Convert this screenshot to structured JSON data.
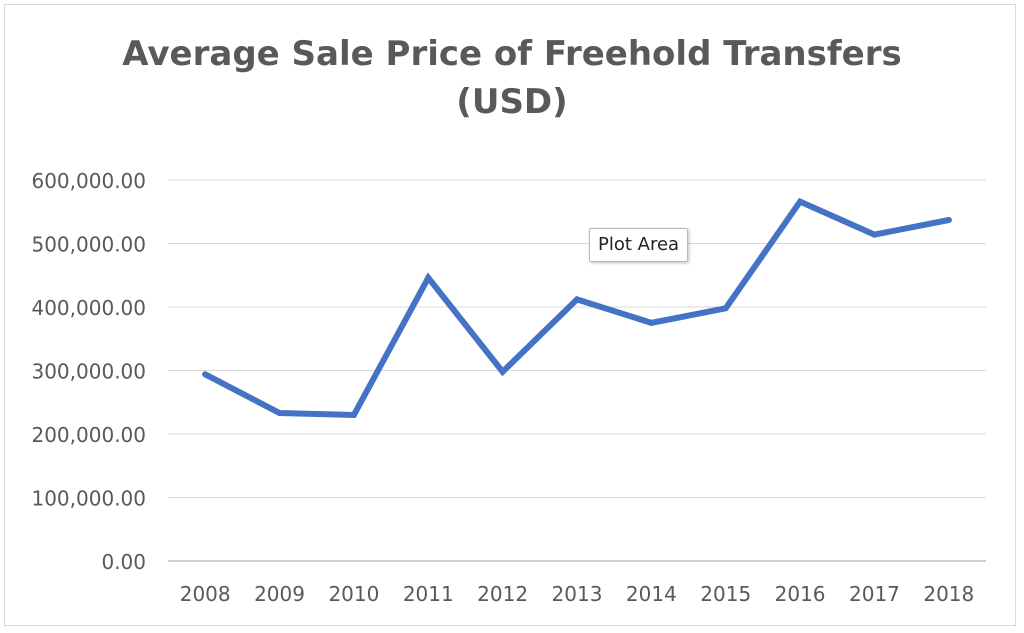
{
  "chart_data": {
    "type": "line",
    "title": "Average Sale Price of Freehold Transfers (USD)",
    "title_lines": [
      "Average Sale Price of Freehold Transfers",
      "(USD)"
    ],
    "categories": [
      "2008",
      "2009",
      "2010",
      "2011",
      "2012",
      "2013",
      "2014",
      "2015",
      "2016",
      "2017",
      "2018"
    ],
    "series": [
      {
        "values": [
          294000,
          233000,
          230000,
          446000,
          298000,
          412000,
          375000,
          398000,
          566000,
          514000,
          537000
        ]
      }
    ],
    "y_ticks": [
      0,
      100000,
      200000,
      300000,
      400000,
      500000,
      600000
    ],
    "y_tick_labels": [
      "0.00",
      "100,000.00",
      "200,000.00",
      "300,000.00",
      "400,000.00",
      "500,000.00",
      "600,000.00"
    ],
    "ylim": [
      0,
      600000
    ],
    "grid": true,
    "legend": "none",
    "line_color": "#4472C4"
  },
  "tooltip": {
    "label": "Plot Area"
  }
}
